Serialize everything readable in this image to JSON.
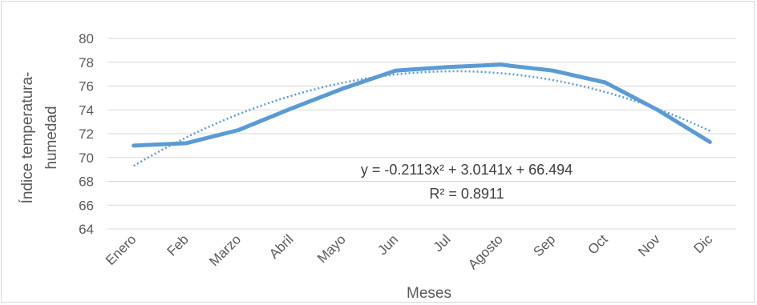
{
  "chart_data": {
    "type": "line",
    "categories": [
      "Enero",
      "Feb",
      "Marzo",
      "Abril",
      "Mayo",
      "Jun",
      "Jul",
      "Agosto",
      "Sep",
      "Oct",
      "Nov",
      "Dic"
    ],
    "series": [
      {
        "values": [
          71.0,
          71.2,
          72.3,
          74.1,
          75.8,
          77.3,
          77.6,
          77.8,
          77.3,
          76.3,
          74.0,
          71.3
        ],
        "color": "#5b9bd5",
        "style": "solid"
      }
    ],
    "trendline": {
      "type": "polynomial-2",
      "coefficients": [
        -0.2113,
        3.0141,
        66.494
      ],
      "color": "#5b9bd5",
      "style": "dotted",
      "equation_label": "y = -0.2113x² + 3.0141x + 66.494",
      "r2_label": "R² = 0.8911"
    },
    "xlabel": "Meses",
    "ylabel_lines": [
      "Índice temperatura-",
      "humedad"
    ],
    "ylim": [
      64,
      80
    ],
    "yticks": [
      64,
      66,
      68,
      70,
      72,
      74,
      76,
      78,
      80
    ],
    "grid": "horizontal",
    "legend": "none"
  }
}
